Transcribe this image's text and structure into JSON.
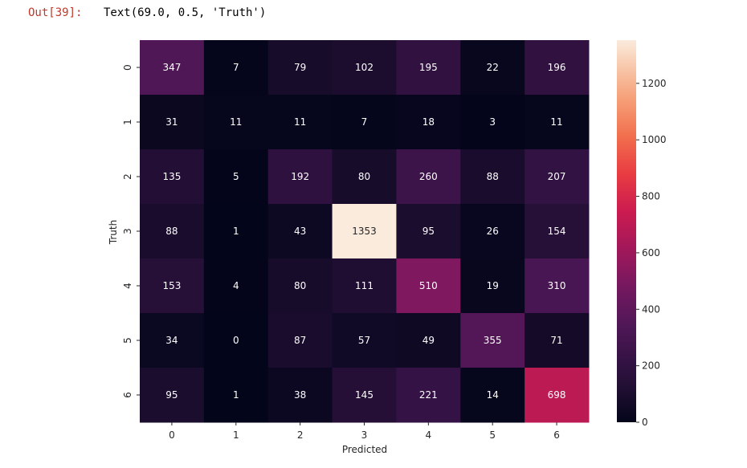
{
  "cell": {
    "prompt": "Out[39]:",
    "output": "Text(69.0, 0.5, 'Truth')"
  },
  "chart_data": {
    "type": "heatmap",
    "xlabel": "Predicted",
    "ylabel": "Truth",
    "x_categories": [
      "0",
      "1",
      "2",
      "3",
      "4",
      "5",
      "6"
    ],
    "y_categories": [
      "0",
      "1",
      "2",
      "3",
      "4",
      "5",
      "6"
    ],
    "values": [
      [
        347,
        7,
        79,
        102,
        195,
        22,
        196
      ],
      [
        31,
        11,
        11,
        7,
        18,
        3,
        11
      ],
      [
        135,
        5,
        192,
        80,
        260,
        88,
        207
      ],
      [
        88,
        1,
        43,
        1353,
        95,
        26,
        154
      ],
      [
        153,
        4,
        80,
        111,
        510,
        19,
        310
      ],
      [
        34,
        0,
        87,
        57,
        49,
        355,
        71
      ],
      [
        95,
        1,
        38,
        145,
        221,
        14,
        698
      ]
    ],
    "colormap": "rocket",
    "colorbar": {
      "vmin": 0,
      "vmax": 1353,
      "ticks": [
        0,
        200,
        400,
        600,
        800,
        1000,
        1200
      ]
    },
    "annotation_colors": {
      "on_dark": "#ffffff",
      "on_light": "#262626"
    }
  }
}
